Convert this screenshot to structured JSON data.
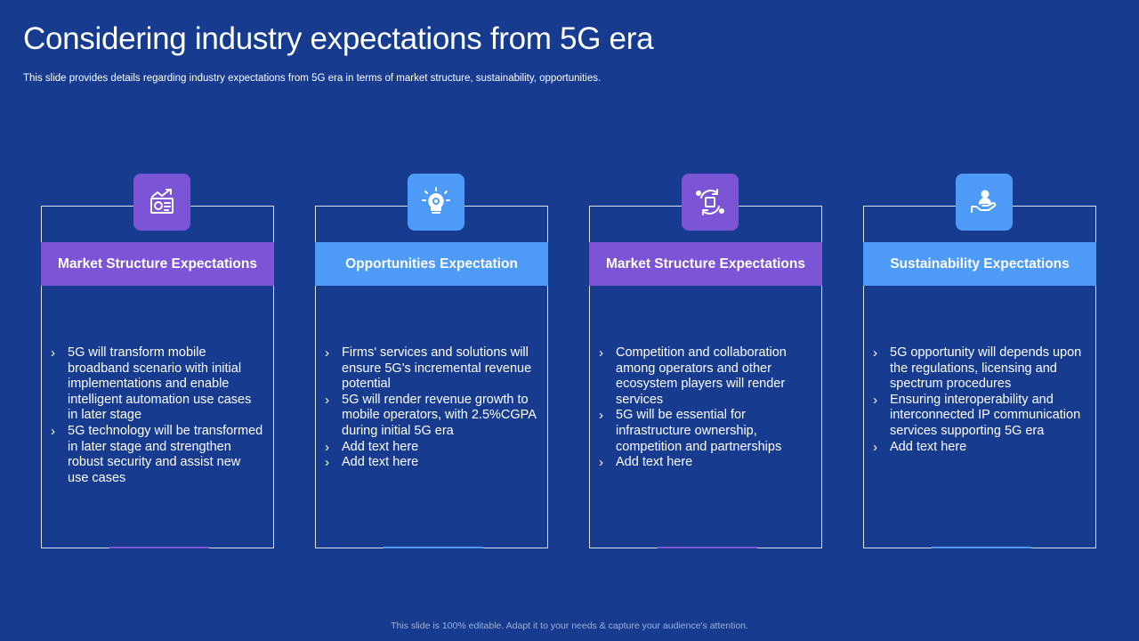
{
  "slide": {
    "title": "Considering industry expectations from 5G era",
    "subtitle": "This slide provides details regarding industry expectations from 5G era in terms of market structure, sustainability, opportunities.",
    "footer": "This slide is 100% editable. Adapt it to your needs & capture your audience's attention."
  },
  "colors": {
    "background": "#163b8f",
    "purple_accent": "#7b55d6",
    "blue_accent": "#4d9af7",
    "card_border": "#d9e2f5"
  },
  "cards": [
    {
      "icon": "chart-certificate-icon",
      "heading": "Market Structure Expectations",
      "bullets": [
        "5G will transform mobile broadband scenario with initial implementations and enable intelligent automation use cases in later stage",
        "5G technology will be transformed in later stage and strengthen robust security and assist new use cases"
      ]
    },
    {
      "icon": "lightbulb-gear-icon",
      "heading": "Opportunities Expectation",
      "bullets": [
        "Firms' services and solutions will ensure 5G's incremental revenue potential",
        "5G will render revenue growth to mobile operators, with 2.5%CGPA during initial 5G era",
        "Add text here",
        "Add text here"
      ]
    },
    {
      "icon": "people-cycle-icon",
      "heading": "Market Structure Expectations",
      "bullets": [
        "Competition and collaboration among operators and other ecosystem players will render services",
        "5G will be essential for infrastructure ownership, competition and partnerships",
        "Add text here"
      ]
    },
    {
      "icon": "hand-user-icon",
      "heading": "Sustainability Expectations",
      "bullets": [
        "5G opportunity will depends upon the regulations, licensing and spectrum procedures",
        "Ensuring interoperability and interconnected IP communication services supporting 5G era",
        "Add text here"
      ]
    }
  ]
}
